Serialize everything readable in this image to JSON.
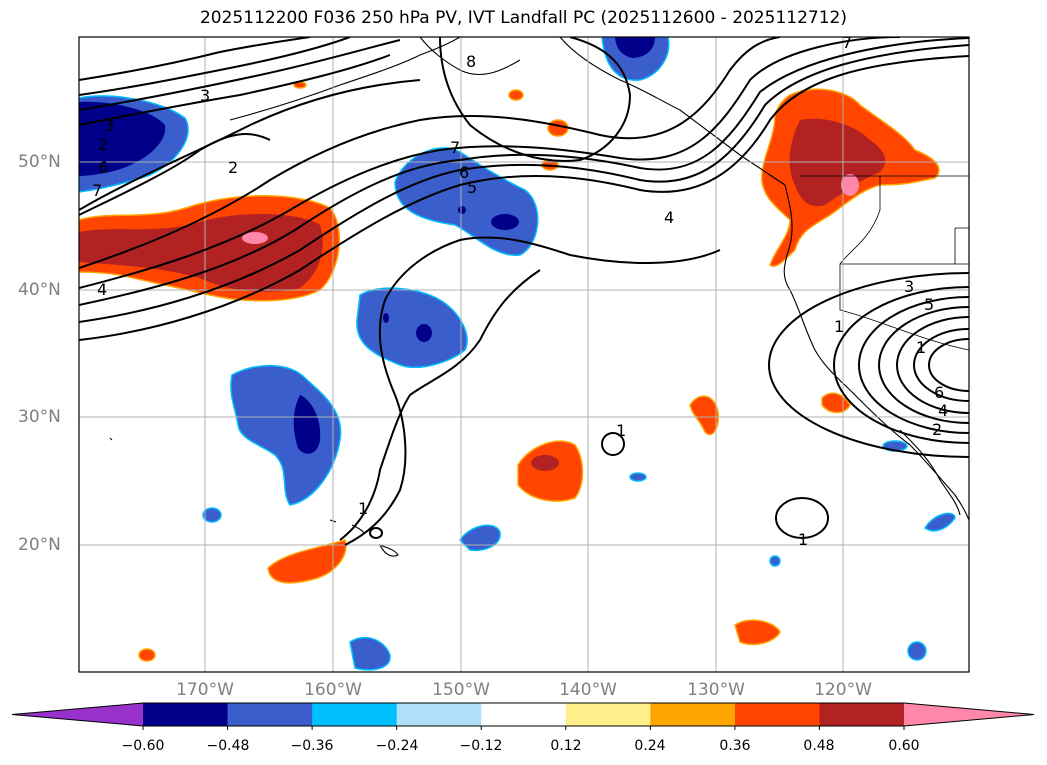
{
  "title": "2025112200 F036 250 hPa PV, IVT Landfall PC (2025112600 - 2025112712)",
  "latitude_labels": [
    "50°N",
    "40°N",
    "30°N",
    "20°N"
  ],
  "longitude_labels": [
    "170°W",
    "160°W",
    "150°W",
    "140°W",
    "130°W",
    "120°W"
  ],
  "colorbar": {
    "ticks": [
      "−0.60",
      "−0.48",
      "−0.36",
      "−0.24",
      "−0.12",
      "0.12",
      "0.24",
      "0.36",
      "0.48",
      "0.60"
    ],
    "colors": [
      "#9932cc",
      "#00008b",
      "#3a5fcd",
      "#00bfff",
      "#b0e0f8",
      "#ffffff",
      "#fff08c",
      "#ffa500",
      "#ff4500",
      "#b22222",
      "#ff88aa"
    ]
  },
  "contour_labels": [
    "3",
    "3",
    "2",
    "6",
    "7",
    "2",
    "4",
    "8",
    "7",
    "6",
    "5",
    "4",
    "7",
    "1",
    "1",
    "1",
    "1",
    "3",
    "5",
    "1",
    "6",
    "4",
    "2"
  ]
}
